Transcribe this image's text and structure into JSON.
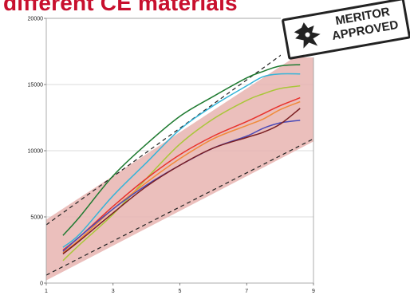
{
  "header": {
    "title": "different CE materials"
  },
  "stamp": {
    "line1": "MERITOR",
    "line2": "APPROVED"
  },
  "chart_data": {
    "type": "line",
    "title": "different CE materials",
    "xlabel": "",
    "ylabel": "",
    "xlim": [
      1,
      9
    ],
    "ylim": [
      0,
      20000
    ],
    "x_ticks": [
      "1",
      "3",
      "5",
      "7",
      "9"
    ],
    "y_ticks": [
      "0",
      "5000",
      "10000",
      "15000",
      "20000"
    ],
    "grid": "horizontal",
    "band": {
      "color": "#e8b4b0",
      "upper": [
        [
          1,
          4800
        ],
        [
          9,
          18000
        ]
      ],
      "lower": [
        [
          1,
          200
        ],
        [
          9,
          10700
        ]
      ]
    },
    "dashed_lines": [
      {
        "color": "#222222",
        "values": [
          [
            1,
            4400
          ],
          [
            9,
            19000
          ]
        ]
      },
      {
        "color": "#222222",
        "values": [
          [
            1,
            600
          ],
          [
            9,
            10900
          ]
        ]
      }
    ],
    "series": [
      {
        "color": "#1e7a30",
        "values": [
          [
            1.5,
            3600
          ],
          [
            2,
            5000
          ],
          [
            3,
            8100
          ],
          [
            4,
            10500
          ],
          [
            5,
            12600
          ],
          [
            6,
            14100
          ],
          [
            7,
            15500
          ],
          [
            7.5,
            16000
          ],
          [
            8,
            16400
          ],
          [
            8.6,
            16500
          ]
        ]
      },
      {
        "color": "#35b4d8",
        "values": [
          [
            1.5,
            2700
          ],
          [
            2,
            3700
          ],
          [
            3,
            6600
          ],
          [
            4,
            9100
          ],
          [
            5,
            11600
          ],
          [
            6,
            13400
          ],
          [
            7,
            14900
          ],
          [
            7.5,
            15600
          ],
          [
            8,
            15800
          ],
          [
            8.6,
            15800
          ]
        ]
      },
      {
        "color": "#a9c639",
        "values": [
          [
            1.5,
            1700
          ],
          [
            2,
            2900
          ],
          [
            3,
            5200
          ],
          [
            4,
            7900
          ],
          [
            5,
            10500
          ],
          [
            6,
            12400
          ],
          [
            7,
            13800
          ],
          [
            7.5,
            14300
          ],
          [
            8,
            14700
          ],
          [
            8.6,
            14900
          ]
        ]
      },
      {
        "color": "#e8332d",
        "values": [
          [
            1.5,
            2500
          ],
          [
            2,
            3500
          ],
          [
            3,
            5800
          ],
          [
            4,
            7900
          ],
          [
            5,
            9700
          ],
          [
            6,
            11100
          ],
          [
            7,
            12200
          ],
          [
            7.5,
            12800
          ],
          [
            8,
            13400
          ],
          [
            8.6,
            14000
          ]
        ]
      },
      {
        "color": "#f08a3a",
        "values": [
          [
            1.5,
            2300
          ],
          [
            2,
            3300
          ],
          [
            3,
            5600
          ],
          [
            4,
            7600
          ],
          [
            5,
            9400
          ],
          [
            6,
            10900
          ],
          [
            7,
            11900
          ],
          [
            7.5,
            12400
          ],
          [
            8,
            13100
          ],
          [
            8.6,
            13700
          ]
        ]
      },
      {
        "color": "#4a4ab8",
        "values": [
          [
            1.5,
            2400
          ],
          [
            2,
            3500
          ],
          [
            3,
            5600
          ],
          [
            4,
            7400
          ],
          [
            5,
            8900
          ],
          [
            6,
            10200
          ],
          [
            7,
            11100
          ],
          [
            7.5,
            11700
          ],
          [
            8,
            12100
          ],
          [
            8.6,
            12300
          ]
        ]
      },
      {
        "color": "#7a1e22",
        "values": [
          [
            1.5,
            2200
          ],
          [
            2,
            3200
          ],
          [
            3,
            5300
          ],
          [
            4,
            7300
          ],
          [
            5,
            8900
          ],
          [
            6,
            10200
          ],
          [
            7,
            11000
          ],
          [
            7.5,
            11400
          ],
          [
            8,
            12000
          ],
          [
            8.6,
            13200
          ]
        ]
      }
    ]
  }
}
